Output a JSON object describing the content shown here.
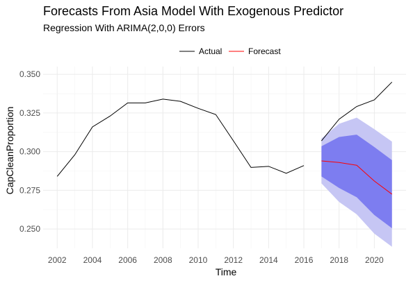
{
  "chart_data": {
    "type": "line",
    "title": "Forecasts From Asia Model With Exogenous Predictor",
    "subtitle": "Regression With ARIMA(2,0,0) Errors",
    "xlabel": "Time",
    "ylabel": "CapCleanProportion",
    "xlim": [
      2001.2,
      2021.8
    ],
    "ylim": [
      0.2375,
      0.355
    ],
    "x_ticks": [
      2002,
      2004,
      2006,
      2008,
      2010,
      2012,
      2014,
      2016,
      2018,
      2020
    ],
    "y_ticks": [
      0.25,
      0.275,
      0.3,
      0.325,
      0.35
    ],
    "y_tick_labels": [
      "0.250",
      "0.275",
      "0.300",
      "0.325",
      "0.350"
    ],
    "grid": true,
    "legend_position": "top",
    "series": [
      {
        "name": "Actual",
        "color": "#000000",
        "x": [
          2002,
          2003,
          2004,
          2005,
          2006,
          2007,
          2008,
          2009,
          2010,
          2011,
          2012,
          2013,
          2014,
          2015,
          2016
        ],
        "y": [
          0.284,
          0.298,
          0.316,
          0.323,
          0.3315,
          0.3315,
          0.334,
          0.3325,
          0.328,
          0.324,
          0.307,
          0.2898,
          0.2905,
          0.286,
          0.291
        ]
      },
      {
        "name": "Actual",
        "color": "#000000",
        "x": [
          2017,
          2018,
          2019,
          2020,
          2021
        ],
        "y": [
          0.307,
          0.321,
          0.3292,
          0.3335,
          0.345
        ]
      },
      {
        "name": "Forecast",
        "color": "#ff0000",
        "x": [
          2017,
          2018,
          2019,
          2020,
          2021
        ],
        "y": [
          0.294,
          0.293,
          0.2912,
          0.281,
          0.2725
        ]
      }
    ],
    "intervals": [
      {
        "level": "95%",
        "color": "#c6c6f4",
        "x": [
          2017,
          2018,
          2019,
          2020,
          2021
        ],
        "lower": [
          0.2795,
          0.2675,
          0.2595,
          0.247,
          0.2385
        ],
        "upper": [
          0.3085,
          0.318,
          0.322,
          0.3145,
          0.3065
        ]
      },
      {
        "level": "80%",
        "color": "#7d7df0",
        "x": [
          2017,
          2018,
          2019,
          2020,
          2021
        ],
        "lower": [
          0.284,
          0.2765,
          0.2705,
          0.259,
          0.2505
        ],
        "upper": [
          0.3035,
          0.3095,
          0.311,
          0.303,
          0.2945
        ]
      }
    ]
  }
}
